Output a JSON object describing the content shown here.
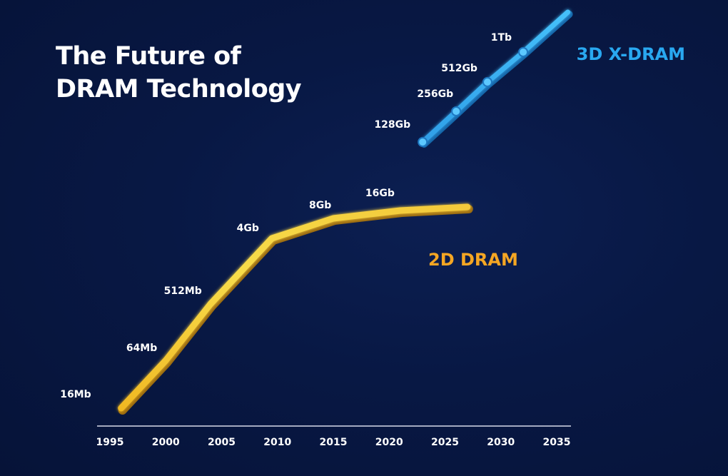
{
  "title_lines": [
    "The Future of",
    "DRAM Technology"
  ],
  "chart_data": {
    "type": "line",
    "title": "The Future of DRAM Technology",
    "xlabel": "",
    "ylabel": "",
    "x_ticks": [
      1995,
      2000,
      2005,
      2010,
      2015,
      2020,
      2025,
      2030,
      2035
    ],
    "xlim": [
      1995,
      2035
    ],
    "grid": false,
    "legend": "labels placed next to each series",
    "series": [
      {
        "name": "2D DRAM",
        "color": "#f5a623",
        "line_color": "#f2cf3a",
        "points": [
          {
            "x": 1996,
            "label": "16Mb"
          },
          {
            "x": 2000,
            "label": "64Mb"
          },
          {
            "x": 2004,
            "label": "512Mb"
          },
          {
            "x": 2009.5,
            "label": "4Gb"
          },
          {
            "x": 2015,
            "label": "8Gb"
          },
          {
            "x": 2021,
            "label": "16Gb"
          },
          {
            "x": 2027
          }
        ]
      },
      {
        "name": "3D X-DRAM",
        "color": "#29a8f0",
        "line_color": "#3ab0f3",
        "points": [
          {
            "x": 2023,
            "label": "128Gb"
          },
          {
            "x": 2026,
            "label": "256Gb"
          },
          {
            "x": 2028.8,
            "label": "512Gb"
          },
          {
            "x": 2032,
            "label": "1Tb"
          },
          {
            "x": 2036
          }
        ]
      }
    ]
  }
}
